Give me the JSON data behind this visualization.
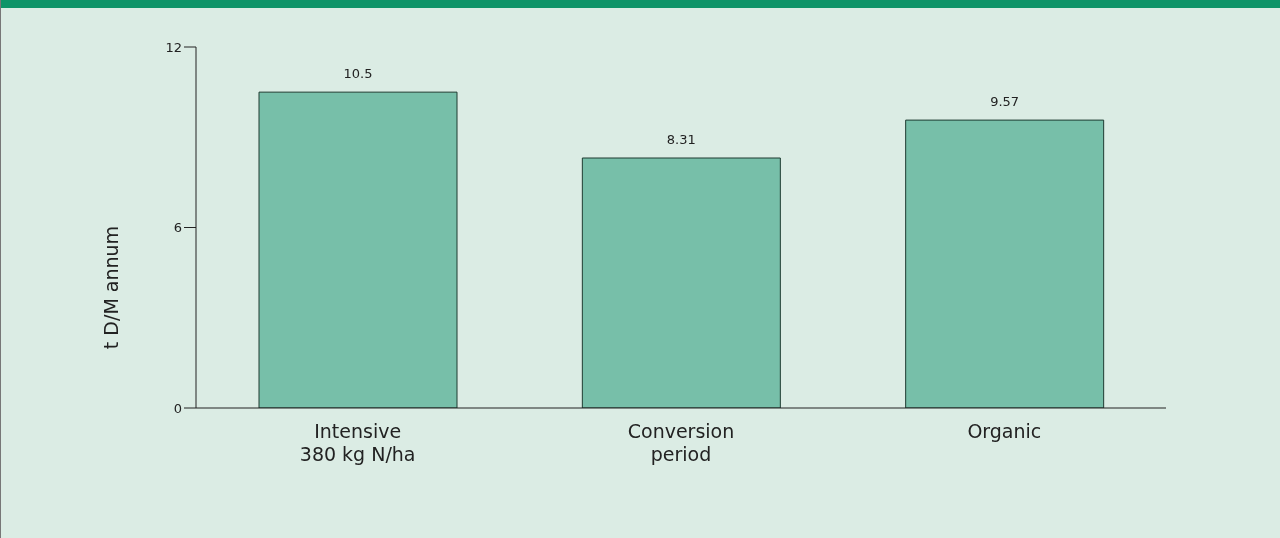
{
  "chart_data": {
    "type": "bar",
    "ylabel": "t D/M annum",
    "categories": [
      "Intensive\n380 kg N/ha",
      "Conversion\nperiod",
      "Organic"
    ],
    "values": [
      10.5,
      8.31,
      9.57
    ],
    "color": "#77bfa9",
    "ylim": [
      0,
      12
    ],
    "yticks": [
      0,
      6,
      12
    ],
    "grid": false,
    "data_labels": true
  }
}
